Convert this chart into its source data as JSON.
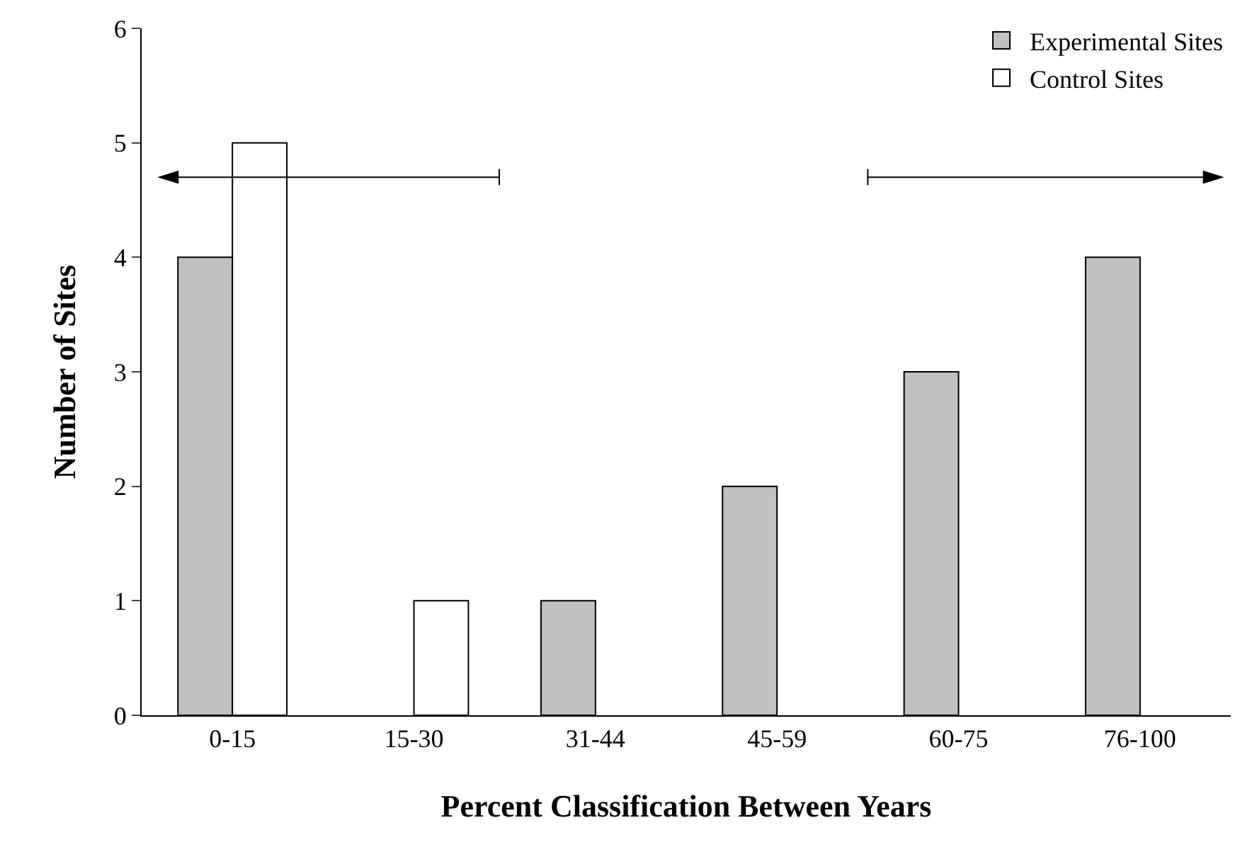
{
  "chart_data": {
    "type": "bar",
    "xlabel": "Percent Classification Between Years",
    "ylabel": "Number of Sites",
    "categories": [
      "0-15",
      "15-30",
      "31-44",
      "45-59",
      "60-75",
      "76-100"
    ],
    "series": [
      {
        "name": "Experimental Sites",
        "color": "#c0c0c0",
        "values": [
          4,
          null,
          1,
          2,
          3,
          4
        ]
      },
      {
        "name": "Control Sites",
        "color": "#ffffff",
        "values": [
          5,
          1,
          null,
          null,
          null,
          null
        ]
      }
    ],
    "ylim": [
      0,
      6
    ],
    "yticks": [
      0,
      1,
      2,
      3,
      4,
      5,
      6
    ],
    "legend": "top right"
  }
}
